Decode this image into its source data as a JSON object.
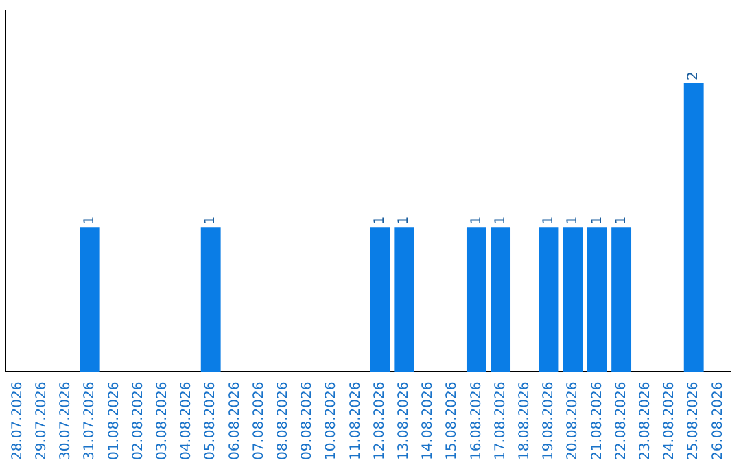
{
  "chart_data": {
    "type": "bar",
    "categories": [
      "28.07.2026",
      "29.07.2026",
      "30.07.2026",
      "31.07.2026",
      "01.08.2026",
      "02.08.2026",
      "03.08.2026",
      "04.08.2026",
      "05.08.2026",
      "06.08.2026",
      "07.08.2026",
      "08.08.2026",
      "09.08.2026",
      "10.08.2026",
      "11.08.2026",
      "12.08.2026",
      "13.08.2026",
      "14.08.2026",
      "15.08.2026",
      "16.08.2026",
      "17.08.2026",
      "18.08.2026",
      "19.08.2026",
      "20.08.2026",
      "21.08.2026",
      "22.08.2026",
      "23.08.2026",
      "24.08.2026",
      "25.08.2026",
      "26.08.2026"
    ],
    "values": [
      0,
      0,
      0,
      1,
      0,
      0,
      0,
      0,
      1,
      0,
      0,
      0,
      0,
      0,
      0,
      1,
      1,
      0,
      0,
      1,
      1,
      0,
      1,
      1,
      1,
      1,
      0,
      0,
      2,
      0
    ],
    "value_labels": [
      null,
      null,
      null,
      "1",
      null,
      null,
      null,
      null,
      "1",
      null,
      null,
      null,
      null,
      null,
      null,
      "1",
      "1",
      null,
      null,
      "1",
      "1",
      null,
      "1",
      "1",
      "1",
      "1",
      null,
      null,
      "2",
      null
    ],
    "color": "#0a7de6",
    "tick_labels": "x",
    "grid": false
  }
}
